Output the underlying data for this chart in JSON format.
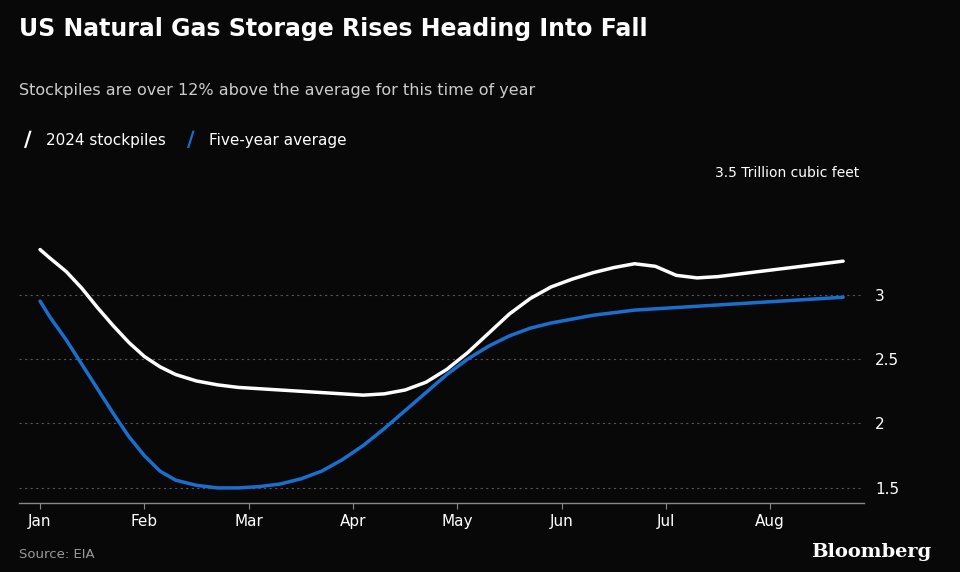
{
  "title": "US Natural Gas Storage Rises Heading Into Fall",
  "subtitle": "Stockpiles are over 12% above the average for this time of year",
  "ylabel_annotation": "3.5 Trillion cubic feet",
  "source": "Source: EIA",
  "bloomberg": "Bloomberg",
  "background_color": "#080808",
  "text_color": "#ffffff",
  "subtitle_color": "#cccccc",
  "grid_color": "#555555",
  "x_labels": [
    "Jan",
    "Feb",
    "Mar",
    "Apr",
    "May",
    "Jun",
    "Jul",
    "Aug"
  ],
  "x_positions": [
    0,
    1,
    2,
    3,
    4,
    5,
    6,
    7
  ],
  "xlim": [
    -0.2,
    7.9
  ],
  "ylim": [
    1.38,
    3.6
  ],
  "yticks": [
    1.5,
    2.0,
    2.5,
    3.0
  ],
  "stockpiles_2024": {
    "x": [
      0.0,
      0.1,
      0.25,
      0.4,
      0.55,
      0.7,
      0.85,
      1.0,
      1.15,
      1.3,
      1.5,
      1.7,
      1.9,
      2.1,
      2.3,
      2.5,
      2.7,
      2.9,
      3.1,
      3.3,
      3.5,
      3.7,
      3.9,
      4.1,
      4.3,
      4.5,
      4.7,
      4.9,
      5.1,
      5.3,
      5.5,
      5.7,
      5.9,
      6.1,
      6.3,
      6.5,
      6.7,
      6.9,
      7.1,
      7.3,
      7.5,
      7.7
    ],
    "y": [
      3.35,
      3.28,
      3.18,
      3.05,
      2.9,
      2.76,
      2.63,
      2.52,
      2.44,
      2.38,
      2.33,
      2.3,
      2.28,
      2.27,
      2.26,
      2.25,
      2.24,
      2.23,
      2.22,
      2.23,
      2.26,
      2.32,
      2.42,
      2.55,
      2.7,
      2.85,
      2.97,
      3.06,
      3.12,
      3.17,
      3.21,
      3.24,
      3.22,
      3.15,
      3.13,
      3.14,
      3.16,
      3.18,
      3.2,
      3.22,
      3.24,
      3.26
    ],
    "color": "#ffffff",
    "linewidth": 2.5,
    "label": "2024 stockpiles"
  },
  "five_year_avg": {
    "x": [
      0.0,
      0.1,
      0.25,
      0.4,
      0.55,
      0.7,
      0.85,
      1.0,
      1.15,
      1.3,
      1.5,
      1.7,
      1.9,
      2.1,
      2.3,
      2.5,
      2.7,
      2.9,
      3.1,
      3.3,
      3.5,
      3.7,
      3.9,
      4.1,
      4.3,
      4.5,
      4.7,
      4.9,
      5.1,
      5.3,
      5.5,
      5.7,
      5.9,
      6.1,
      6.3,
      6.5,
      6.7,
      6.9,
      7.1,
      7.3,
      7.5,
      7.7
    ],
    "y": [
      2.95,
      2.82,
      2.65,
      2.46,
      2.27,
      2.08,
      1.9,
      1.75,
      1.63,
      1.56,
      1.52,
      1.5,
      1.5,
      1.51,
      1.53,
      1.57,
      1.63,
      1.72,
      1.83,
      1.96,
      2.1,
      2.24,
      2.38,
      2.5,
      2.6,
      2.68,
      2.74,
      2.78,
      2.81,
      2.84,
      2.86,
      2.88,
      2.89,
      2.9,
      2.91,
      2.92,
      2.93,
      2.94,
      2.95,
      2.96,
      2.97,
      2.98
    ],
    "color": "#1a6fce",
    "linewidth": 2.5,
    "label": "Five-year average"
  }
}
